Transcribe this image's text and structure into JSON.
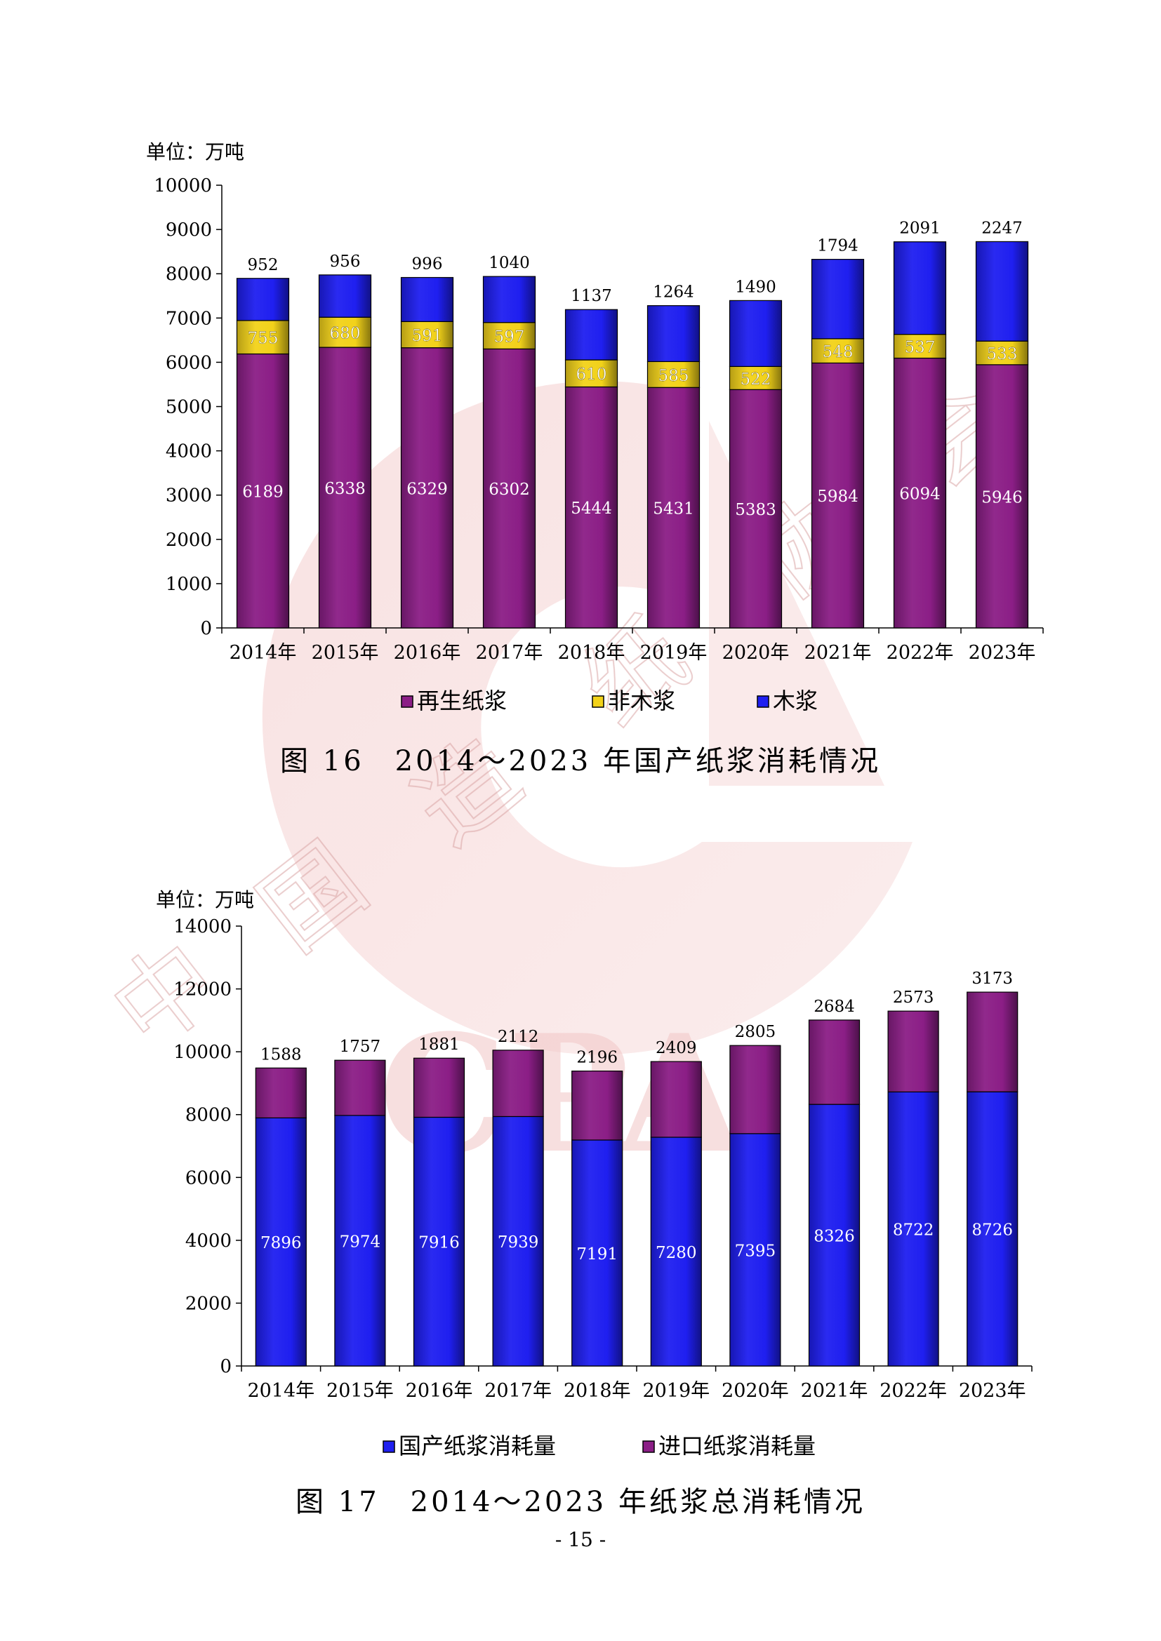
{
  "page": {
    "number": "- 15 -",
    "watermark_text": [
      "中",
      "国",
      "造",
      "纸",
      "协",
      "会"
    ],
    "watermark_logo": "CPA"
  },
  "captions": [
    "图 16　2014～2023 年国产纸浆消耗情况",
    "图 17　2014～2023 年纸浆总消耗情况"
  ],
  "colors": {
    "purple": "#8b1e86",
    "yellow": "#f2d21a",
    "blue": "#1f1ff0",
    "watermark": "#e8b4b4"
  },
  "chart_data": [
    {
      "type": "bar",
      "stacked": true,
      "unit_label": "单位：万吨",
      "categories": [
        "2014年",
        "2015年",
        "2016年",
        "2017年",
        "2018年",
        "2019年",
        "2020年",
        "2021年",
        "2022年",
        "2023年"
      ],
      "ylim": [
        0,
        10000
      ],
      "yticks": [
        0,
        1000,
        2000,
        3000,
        4000,
        5000,
        6000,
        7000,
        8000,
        9000,
        10000
      ],
      "legend_position": "bottom",
      "series": [
        {
          "name": "再生纸浆",
          "color": "#8b1e86",
          "values": [
            6189,
            6338,
            6329,
            6302,
            5444,
            5431,
            5383,
            5984,
            6094,
            5946
          ]
        },
        {
          "name": "非木浆",
          "color": "#f2d21a",
          "values": [
            755,
            680,
            591,
            597,
            610,
            585,
            522,
            548,
            537,
            533
          ]
        },
        {
          "name": "木浆",
          "color": "#1f1ff0",
          "values": [
            952,
            956,
            996,
            1040,
            1137,
            1264,
            1490,
            1794,
            2091,
            2247
          ]
        }
      ]
    },
    {
      "type": "bar",
      "stacked": true,
      "unit_label": "单位：万吨",
      "categories": [
        "2014年",
        "2015年",
        "2016年",
        "2017年",
        "2018年",
        "2019年",
        "2020年",
        "2021年",
        "2022年",
        "2023年"
      ],
      "ylim": [
        0,
        14000
      ],
      "yticks": [
        0,
        2000,
        4000,
        6000,
        8000,
        10000,
        12000,
        14000
      ],
      "legend_position": "bottom",
      "series": [
        {
          "name": "国产纸浆消耗量",
          "color": "#1f1ff0",
          "values": [
            7896,
            7974,
            7916,
            7939,
            7191,
            7280,
            7395,
            8326,
            8722,
            8726
          ]
        },
        {
          "name": "进口纸浆消耗量",
          "color": "#8b1e86",
          "values": [
            1588,
            1757,
            1881,
            2112,
            2196,
            2409,
            2805,
            2684,
            2573,
            3173
          ]
        }
      ]
    }
  ]
}
